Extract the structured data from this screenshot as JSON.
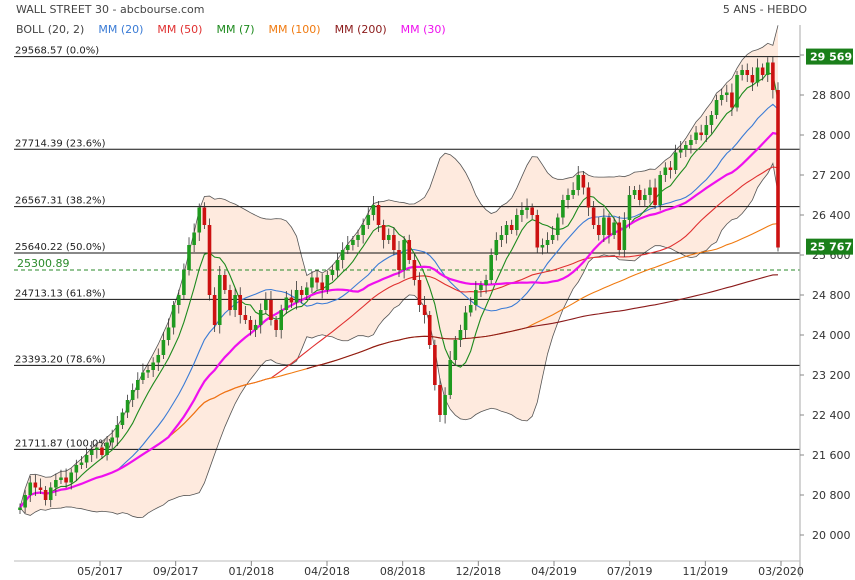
{
  "header": {
    "title": "WALL STREET 30 - abcbourse.com",
    "period": "5 ANS - HEBDO"
  },
  "legend": [
    {
      "label": "BOLL (20, 2)",
      "color": "#444444"
    },
    {
      "label": "MM (20)",
      "color": "#3a7bd5"
    },
    {
      "label": "MM (50)",
      "color": "#e03030"
    },
    {
      "label": "MM (7)",
      "color": "#1d8a1d"
    },
    {
      "label": "MM (100)",
      "color": "#f07a10"
    },
    {
      "label": "MM (200)",
      "color": "#8b1a1a"
    },
    {
      "label": "MM (30)",
      "color": "#ee10ee"
    }
  ],
  "chart_data": {
    "type": "line",
    "ylim": [
      19600,
      29900
    ],
    "y_ticks": [
      20000,
      20800,
      21600,
      22400,
      23200,
      24000,
      24800,
      25600,
      26400,
      27200,
      28000,
      28800,
      29600
    ],
    "y_tick_labels": [
      "20 000",
      "20 800",
      "21 600",
      "22 400",
      "23 200",
      "24 000",
      "24 800",
      "25 600",
      "26 400",
      "27 200",
      "28 000",
      "28 800",
      "29 600"
    ],
    "x_ticks": [
      "05/2017",
      "09/2017",
      "01/2018",
      "04/2018",
      "08/2018",
      "12/2018",
      "04/2019",
      "07/2019",
      "11/2019",
      "03/2020"
    ],
    "fib_levels": [
      {
        "value": 29568.57,
        "label": "29568.57  (0.0%)"
      },
      {
        "value": 27714.39,
        "label": "27714.39  (23.6%)"
      },
      {
        "value": 26567.31,
        "label": "26567.31  (38.2%)"
      },
      {
        "value": 25640.22,
        "label": "25640.22  (50.0%)"
      },
      {
        "value": 24713.13,
        "label": "24713.13  (61.8%)"
      },
      {
        "value": 23393.2,
        "label": "23393.20  (78.6%)"
      },
      {
        "value": 21711.87,
        "label": "21711.87  (100.0%)"
      }
    ],
    "dashed_level": {
      "value": 25300.89,
      "label": "25300.89",
      "color": "#2a8a2a"
    },
    "last_price_tags": [
      {
        "value": 29568.57,
        "label": "29 569",
        "color": "#1a7f1a"
      },
      {
        "value": 25767,
        "label": "25 767",
        "color": "#1a7f1a"
      }
    ],
    "series": [
      {
        "name": "Close",
        "color": "#444444",
        "values": [
          20550,
          20800,
          21050,
          20950,
          20900,
          20700,
          20950,
          21100,
          21150,
          21050,
          21250,
          21400,
          21450,
          21600,
          21700,
          21750,
          21600,
          21850,
          21950,
          22200,
          22450,
          22700,
          22900,
          23100,
          23250,
          23300,
          23450,
          23600,
          23900,
          24150,
          24600,
          24800,
          25300,
          25800,
          26050,
          26550,
          26200,
          24800,
          24200,
          25200,
          24900,
          24500,
          24800,
          24400,
          24300,
          24100,
          24200,
          24500,
          24700,
          24300,
          24100,
          24500,
          24750,
          24650,
          24900,
          24800,
          24950,
          25150,
          25050,
          24900,
          25200,
          25300,
          25500,
          25700,
          25800,
          25900,
          26000,
          26200,
          26400,
          26600,
          26200,
          25900,
          26000,
          25700,
          25300,
          25900,
          25500,
          25100,
          24600,
          24400,
          23800,
          23000,
          22400,
          22800,
          23500,
          23900,
          24100,
          24450,
          24600,
          24900,
          25000,
          25100,
          25600,
          25900,
          26000,
          26200,
          26100,
          26400,
          26500,
          26550,
          26400,
          25750,
          25800,
          25900,
          26000,
          26350,
          26700,
          26800,
          26900,
          27200,
          26950,
          26550,
          26200,
          26000,
          26350,
          26000,
          26250,
          25700,
          26300,
          26800,
          26900,
          26700,
          26800,
          26950,
          26600,
          27200,
          27350,
          27300,
          27650,
          27700,
          27800,
          27900,
          28050,
          28000,
          28200,
          28400,
          28700,
          28800,
          28850,
          28550,
          29200,
          29300,
          29200,
          29050,
          29350,
          29200,
          29450,
          28900,
          25750
        ]
      },
      {
        "name": "MM (20)",
        "color": "#3a7bd5",
        "values": []
      },
      {
        "name": "MM (50)",
        "color": "#e03030",
        "values": []
      },
      {
        "name": "MM (7)",
        "color": "#1d8a1d",
        "values": []
      },
      {
        "name": "MM (100)",
        "color": "#f07a10",
        "values": []
      },
      {
        "name": "MM (200)",
        "color": "#8b1a1a",
        "values": []
      },
      {
        "name": "MM (30)",
        "color": "#ee10ee",
        "values": []
      }
    ]
  }
}
